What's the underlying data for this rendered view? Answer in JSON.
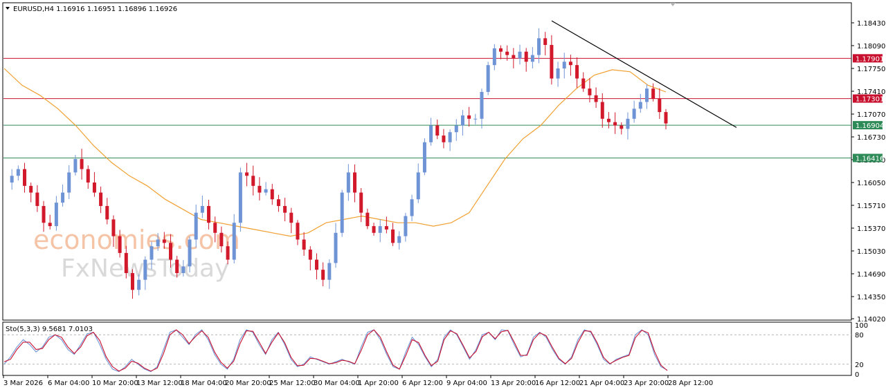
{
  "header": {
    "text": "EURUSD,H4  1.16916 1.16951 1.16896 1.16926"
  },
  "stoch_header": {
    "text": "Sto(5,3,3) 9.5681 7.0103"
  },
  "watermark": {
    "line1": "economies.com",
    "line2": "FxNewsToday"
  },
  "colors": {
    "bull": "#6f94d6",
    "bear": "#d2182b",
    "ma": "#f0a030",
    "resistance": "#c8102e",
    "support": "#2e8b57",
    "trendline": "#000000",
    "stoch_main": "#6f94d6",
    "stoch_signal": "#c8102e"
  },
  "chart_data": [
    {
      "type": "candlestick",
      "symbol": "EURUSD",
      "timeframe": "H4",
      "ohlc_last": {
        "open": 1.16916,
        "high": 1.16951,
        "low": 1.16896,
        "close": 1.16926
      },
      "ylim": [
        1.1402,
        1.1875
      ],
      "y_ticks": [
        "1.18430",
        "1.18090",
        "1.17750",
        "1.17410",
        "1.17070",
        "1.16730",
        "1.16390",
        "1.16050",
        "1.15710",
        "1.15370",
        "1.15030",
        "1.14690",
        "1.14350",
        "1.14020"
      ],
      "x_ticks": [
        "3 Mar 2026",
        "6 Mar 04:00",
        "10 Mar 20:00",
        "13 Mar 12:00",
        "18 Mar 04:00",
        "20 Mar 20:00",
        "25 Mar 12:00",
        "30 Mar 04:00",
        "1 Apr 20:00",
        "6 Apr 12:00",
        "9 Apr 04:00",
        "13 Apr 20:00",
        "16 Apr 12:00",
        "21 Apr 04:00",
        "23 Apr 20:00",
        "28 Apr 12:00"
      ],
      "levels": [
        {
          "label": "1.17901",
          "value": 1.17901,
          "kind": "resistance"
        },
        {
          "label": "1.17301",
          "value": 1.17301,
          "kind": "resistance"
        },
        {
          "label": "1.16904",
          "value": 1.16904,
          "kind": "support"
        },
        {
          "label": "1.16416",
          "value": 1.16416,
          "kind": "support"
        }
      ],
      "trendline": {
        "from": {
          "x": "16 Apr 12:00",
          "y": 1.1846
        },
        "to": {
          "x": "28 Apr 12:00",
          "y": 1.1687
        }
      },
      "close_path": [
        1.1605,
        1.1615,
        1.1625,
        1.16,
        1.159,
        1.157,
        1.1545,
        1.154,
        1.1575,
        1.159,
        1.162,
        1.164,
        1.1625,
        1.1605,
        1.159,
        1.157,
        1.155,
        1.1525,
        1.15,
        1.147,
        1.1445,
        1.146,
        1.149,
        1.151,
        1.152,
        1.1515,
        1.149,
        1.147,
        1.148,
        1.152,
        1.156,
        1.157,
        1.1545,
        1.153,
        1.151,
        1.149,
        1.1545,
        1.162,
        1.1615,
        1.16,
        1.159,
        1.1595,
        1.158,
        1.157,
        1.156,
        1.1545,
        1.152,
        1.1505,
        1.149,
        1.1475,
        1.146,
        1.1485,
        1.153,
        1.159,
        1.162,
        1.159,
        1.156,
        1.154,
        1.153,
        1.154,
        1.1535,
        1.1515,
        1.1525,
        1.1555,
        1.158,
        1.162,
        1.1665,
        1.169,
        1.1675,
        1.1665,
        1.168,
        1.169,
        1.1705,
        1.17,
        1.17,
        1.174,
        1.178,
        1.1805,
        1.18,
        1.1795,
        1.179,
        1.18,
        1.1785,
        1.1795,
        1.182,
        1.181,
        1.176,
        1.1775,
        1.1785,
        1.178,
        1.176,
        1.1745,
        1.1735,
        1.1725,
        1.17,
        1.1695,
        1.169,
        1.1685,
        1.17,
        1.1715,
        1.1725,
        1.1745,
        1.173,
        1.171,
        1.1693
      ],
      "ma_path": [
        1.1775,
        1.175,
        1.1735,
        1.1715,
        1.169,
        1.166,
        1.1635,
        1.1615,
        1.16,
        1.158,
        1.1565,
        1.155,
        1.1545,
        1.154,
        1.1535,
        1.153,
        1.1525,
        1.153,
        1.1545,
        1.155,
        1.1555,
        1.155,
        1.1545,
        1.1545,
        1.154,
        1.1545,
        1.156,
        1.16,
        1.164,
        1.167,
        1.169,
        1.172,
        1.1745,
        1.1765,
        1.1773,
        1.177,
        1.175,
        1.174
      ]
    },
    {
      "type": "line",
      "indicator": "Stochastic Oscillator",
      "params": "5,3,3",
      "main_value": 9.5681,
      "signal_value": 7.0103,
      "ylim": [
        0,
        100
      ],
      "y_ticks": [
        "100",
        "80",
        "20",
        "0"
      ],
      "levels": [
        80,
        20
      ],
      "main": [
        20,
        35,
        55,
        70,
        60,
        45,
        55,
        75,
        80,
        70,
        50,
        40,
        60,
        82,
        85,
        60,
        30,
        10,
        5,
        15,
        30,
        20,
        10,
        5,
        15,
        50,
        85,
        90,
        75,
        60,
        80,
        90,
        70,
        40,
        20,
        10,
        30,
        70,
        90,
        85,
        60,
        40,
        70,
        85,
        60,
        30,
        15,
        20,
        35,
        30,
        25,
        20,
        25,
        30,
        25,
        20,
        55,
        85,
        90,
        70,
        40,
        15,
        10,
        45,
        75,
        60,
        35,
        15,
        30,
        75,
        90,
        80,
        55,
        30,
        50,
        80,
        85,
        70,
        90,
        88,
        60,
        35,
        40,
        75,
        85,
        75,
        50,
        30,
        20,
        35,
        70,
        90,
        85,
        60,
        30,
        20,
        30,
        35,
        40,
        80,
        90,
        80,
        40,
        15,
        8
      ],
      "signal": [
        25,
        30,
        50,
        65,
        65,
        50,
        52,
        70,
        80,
        75,
        55,
        42,
        55,
        78,
        85,
        68,
        35,
        15,
        6,
        12,
        26,
        22,
        12,
        6,
        12,
        42,
        80,
        90,
        80,
        62,
        76,
        88,
        75,
        45,
        24,
        12,
        26,
        62,
        88,
        87,
        65,
        42,
        65,
        84,
        64,
        34,
        17,
        18,
        32,
        31,
        26,
        21,
        23,
        28,
        26,
        21,
        48,
        80,
        90,
        75,
        45,
        18,
        10,
        38,
        70,
        64,
        38,
        17,
        26,
        70,
        88,
        82,
        58,
        33,
        46,
        76,
        85,
        72,
        86,
        89,
        65,
        38,
        38,
        70,
        84,
        78,
        54,
        32,
        21,
        32,
        64,
        88,
        87,
        64,
        34,
        21,
        28,
        34,
        38,
        74,
        89,
        84,
        46,
        18,
        7
      ]
    }
  ]
}
